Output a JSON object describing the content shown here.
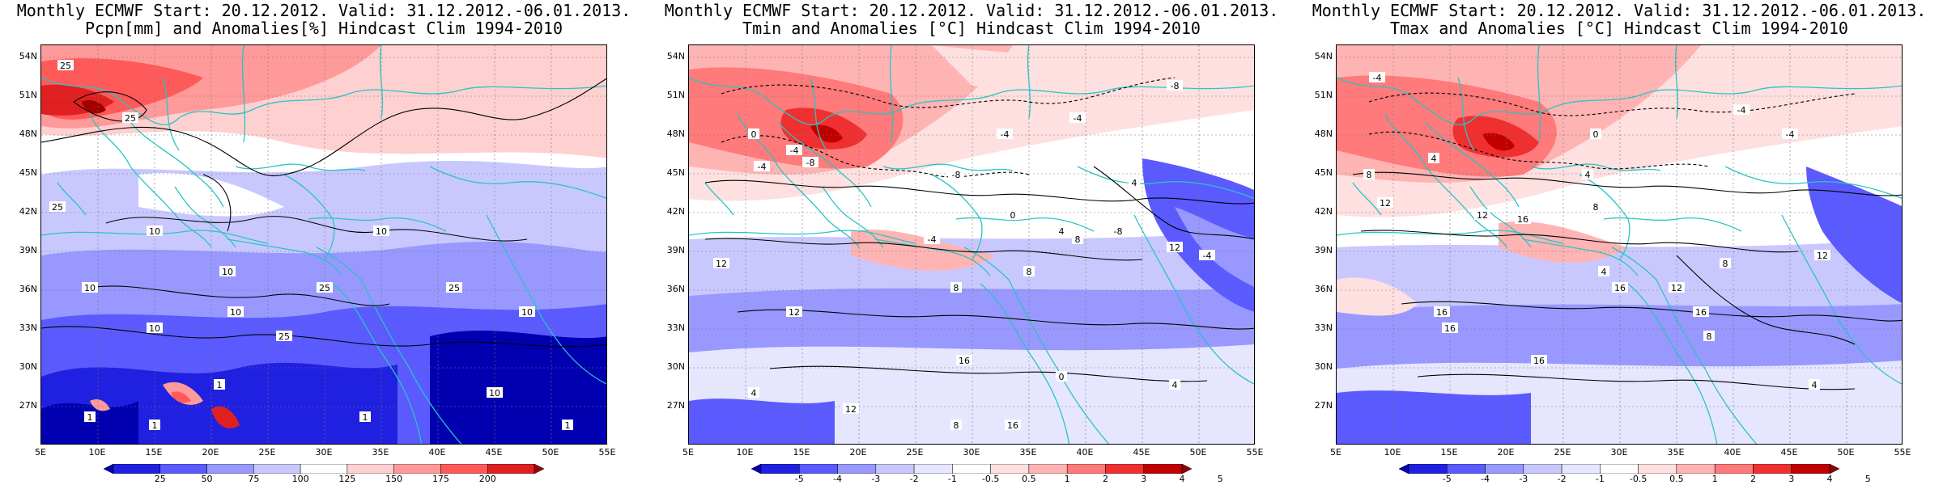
{
  "panels": [
    {
      "title_line1": "Monthly ECMWF Start: 20.12.2012. Valid: 31.12.2012.-06.01.2013.",
      "title_line2": "Pcpn[mm] and Anomalies[%] Hindcast Clim 1994-2010",
      "colorbar_ticks": [
        "25",
        "50",
        "75",
        "100",
        "125",
        "150",
        "175",
        "200"
      ],
      "contour_labels": [
        "25",
        "25",
        "25",
        "10",
        "10",
        "25",
        "10",
        "10",
        "10",
        "25",
        "10",
        "25",
        "10",
        "10",
        "1",
        "1",
        "1",
        "1",
        "1"
      ],
      "palette": [
        "#0000b0",
        "#2020e0",
        "#5a5aff",
        "#9898ff",
        "#c8c8ff",
        "#ffffff",
        "#ffd0d0",
        "#ff9a9a",
        "#ff5a5a",
        "#e02020",
        "#a00000"
      ]
    },
    {
      "title_line1": "Monthly ECMWF Start: 20.12.2012. Valid: 31.12.2012.-06.01.2013.",
      "title_line2": "Tmin and Anomalies [°C] Hindcast Clim 1994-2010",
      "colorbar_ticks": [
        "-5",
        "-4",
        "-3",
        "-2",
        "-1",
        "-0.5",
        "0.5",
        "1",
        "2",
        "3",
        "4",
        "5"
      ],
      "contour_labels": [
        "-8",
        "-4",
        "-4",
        "0",
        "-4",
        "-8",
        "-4",
        "-8",
        "4",
        "8",
        "12",
        "-8",
        "0",
        "-4",
        "4",
        "12",
        "-4",
        "8",
        "8",
        "12",
        "16",
        "4",
        "12",
        "16",
        "8",
        "0",
        "4"
      ],
      "palette": [
        "#0000b0",
        "#2020e0",
        "#5a5aff",
        "#9898ff",
        "#c8c8ff",
        "#e6e6ff",
        "#ffffff",
        "#ffe0e0",
        "#ffb4b4",
        "#ff7a7a",
        "#f03030",
        "#c00000",
        "#900000"
      ]
    },
    {
      "title_line1": "Monthly ECMWF Start: 20.12.2012. Valid: 31.12.2012.-06.01.2013.",
      "title_line2": "Tmax and Anomalies [°C] Hindcast Clim 1994-2010",
      "colorbar_ticks": [
        "-5",
        "-4",
        "-3",
        "-2",
        "-1",
        "-0.5",
        "0.5",
        "1",
        "2",
        "3",
        "4",
        "5"
      ],
      "contour_labels": [
        "-4",
        "-4",
        "0",
        "-4",
        "4",
        "8",
        "4",
        "12",
        "8",
        "12",
        "16",
        "12",
        "4",
        "8",
        "16",
        "16",
        "16",
        "12",
        "16",
        "8",
        "16",
        "4"
      ],
      "palette": [
        "#0000b0",
        "#2020e0",
        "#5a5aff",
        "#9898ff",
        "#c8c8ff",
        "#e6e6ff",
        "#ffffff",
        "#ffe0e0",
        "#ffb4b4",
        "#ff7a7a",
        "#f03030",
        "#c00000",
        "#900000"
      ]
    }
  ],
  "lat_labels": [
    "54N",
    "51N",
    "48N",
    "45N",
    "42N",
    "39N",
    "36N",
    "33N",
    "30N",
    "27N"
  ],
  "lon_labels": [
    "5E",
    "10E",
    "15E",
    "20E",
    "25E",
    "30E",
    "35E",
    "40E",
    "45E",
    "50E",
    "55E"
  ],
  "coast_color": "#29c4c4"
}
